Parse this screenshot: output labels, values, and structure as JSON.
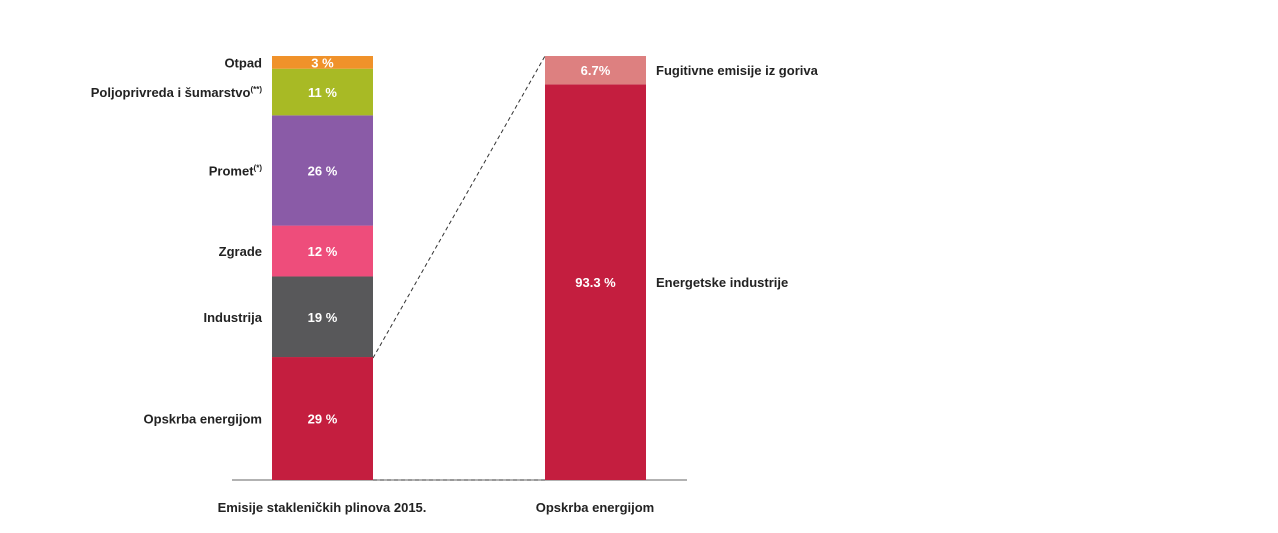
{
  "chart_data": [
    {
      "type": "bar",
      "stacked": true,
      "xlabel": "Emisije stakleničkih plinova 2015.",
      "segments": [
        {
          "name": "Opskrba energijom",
          "sup": "",
          "value": 29,
          "label": "29 %",
          "color": "#c41e3f"
        },
        {
          "name": "Industrija",
          "sup": "",
          "value": 19,
          "label": "19 %",
          "color": "#58585a"
        },
        {
          "name": "Zgrade",
          "sup": "",
          "value": 12,
          "label": "12 %",
          "color": "#ee4d7b"
        },
        {
          "name": "Promet",
          "sup": "(*)",
          "value": 26,
          "label": "26 %",
          "color": "#8a5ba7"
        },
        {
          "name": "Poljoprivreda i šumarstvo",
          "sup": "(**)",
          "value": 11,
          "label": "11 %",
          "color": "#a8ba25"
        },
        {
          "name": "Otpad",
          "sup": "",
          "value": 3,
          "label": "3 %",
          "color": "#f0922a"
        }
      ]
    },
    {
      "type": "bar",
      "stacked": true,
      "xlabel": "Opskrba energijom",
      "segments": [
        {
          "name": "Energetske industrije",
          "sup": "",
          "value": 93.3,
          "label": "93.3 %",
          "color": "#c41e3f"
        },
        {
          "name": "Fugitivne emisije iz goriva",
          "sup": "",
          "value": 6.7,
          "label": "6.7%",
          "color": "#dd8080"
        }
      ]
    }
  ]
}
